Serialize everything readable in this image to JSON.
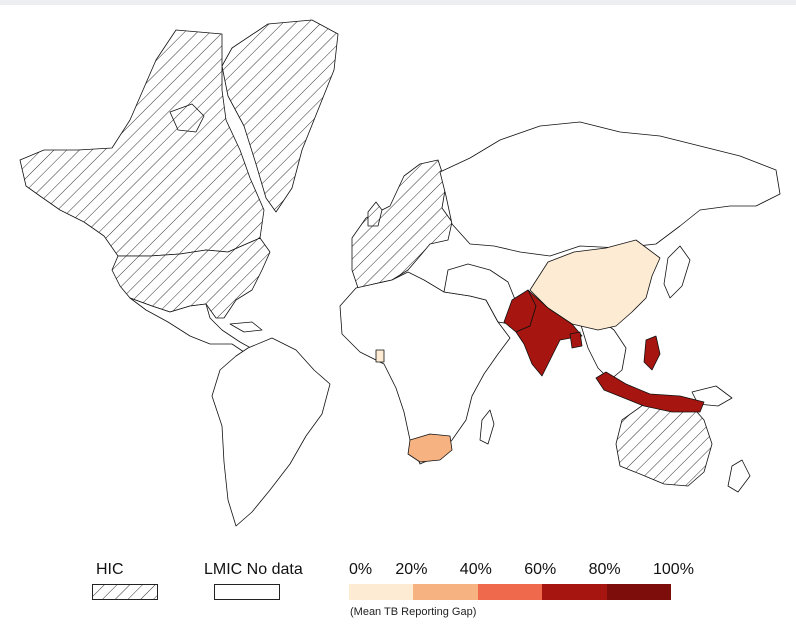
{
  "colors": {
    "hic_stroke": "#333333",
    "no_data": "#ffffff",
    "border": "#111111",
    "bins": [
      "#fdebd3",
      "#f6b381",
      "#ef6a4c",
      "#a6150f",
      "#7d0d0a"
    ]
  },
  "legend": {
    "hic_label": "HIC",
    "nodata_label": "LMIC No data",
    "scale_title": "(Mean TB Reporting Gap)",
    "ticks": [
      "0%",
      "20%",
      "40%",
      "60%",
      "80%",
      "100%"
    ]
  },
  "highlighted": [
    {
      "name": "China",
      "bin": 0
    },
    {
      "name": "Kenya",
      "bin": 0
    },
    {
      "name": "South Africa",
      "bin": 1
    },
    {
      "name": "Pakistan",
      "bin": 3
    },
    {
      "name": "India",
      "bin": 3
    },
    {
      "name": "Bangladesh",
      "bin": 3
    },
    {
      "name": "Indonesia",
      "bin": 3
    },
    {
      "name": "Philippines",
      "bin": 3
    }
  ],
  "hic_regions": [
    "Greenland",
    "Canada",
    "United States",
    "Europe",
    "Australia"
  ]
}
